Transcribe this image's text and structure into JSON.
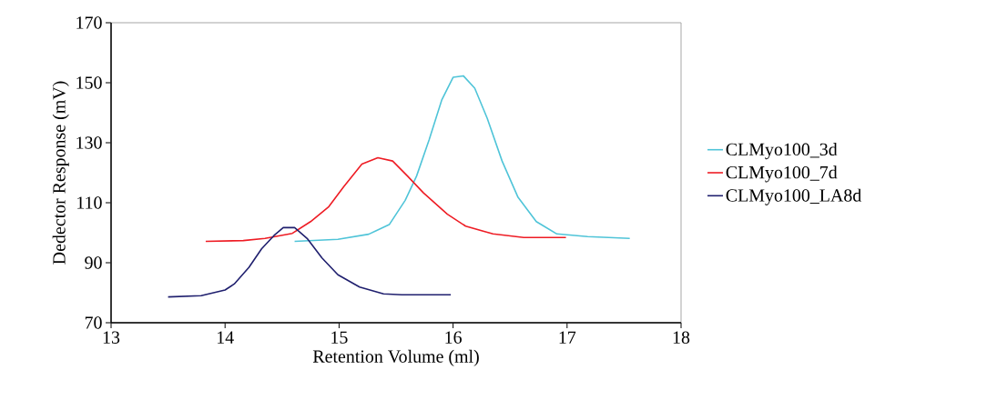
{
  "chart_data": {
    "type": "line",
    "xlabel": "Retention Volume (ml)",
    "ylabel": "Dedector Response (mV)",
    "xlim": [
      13,
      18
    ],
    "xticks": [
      13,
      14,
      15,
      16,
      17,
      18
    ],
    "ylim": [
      70,
      170
    ],
    "yticks": [
      70,
      90,
      110,
      130,
      150,
      170
    ],
    "grid": false,
    "legend": "right",
    "marker": "none",
    "line_style": "solid",
    "series": [
      {
        "name": "CLMyo100_3d",
        "color": "#4fc4d8",
        "x": [
          14.61,
          14.99,
          15.26,
          15.44,
          15.58,
          15.68,
          15.79,
          15.9,
          16.0,
          16.09,
          16.19,
          16.3,
          16.43,
          16.57,
          16.73,
          16.91,
          17.18,
          17.55
        ],
        "values": [
          97.1,
          97.8,
          99.5,
          102.7,
          110.8,
          118.9,
          131.0,
          144.2,
          151.8,
          152.3,
          148.2,
          138.1,
          123.9,
          111.8,
          103.7,
          99.6,
          98.7,
          98.1
        ]
      },
      {
        "name": "CLMyo100_7d",
        "color": "#ee1c24",
        "x": [
          13.83,
          14.16,
          14.35,
          14.59,
          14.75,
          14.91,
          15.04,
          15.2,
          15.34,
          15.47,
          15.6,
          15.74,
          15.95,
          16.11,
          16.35,
          16.62,
          16.99
        ],
        "values": [
          97.1,
          97.4,
          98.1,
          99.8,
          103.7,
          108.7,
          115.3,
          122.9,
          125.0,
          123.9,
          118.9,
          113.3,
          106.2,
          102.2,
          99.6,
          98.4,
          98.4
        ]
      },
      {
        "name": "CLMyo100_LA8d",
        "color": "#1f1f6e",
        "x": [
          13.5,
          13.79,
          14.0,
          14.08,
          14.21,
          14.32,
          14.43,
          14.51,
          14.61,
          14.72,
          14.85,
          14.99,
          15.18,
          15.39,
          15.55,
          15.98
        ],
        "values": [
          78.6,
          79.0,
          80.9,
          82.9,
          88.5,
          94.6,
          99.1,
          101.7,
          101.7,
          98.1,
          91.6,
          86.0,
          81.9,
          79.6,
          79.3,
          79.3
        ]
      }
    ]
  }
}
